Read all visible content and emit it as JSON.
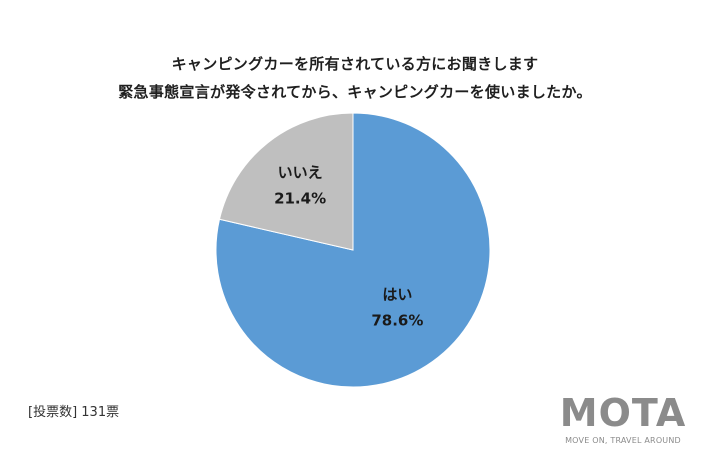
{
  "title_lines": [
    "キャンピングカーを所有されている方にお聞きします",
    "緊急事態宣言が発令されてから、キャンピングカーを使いましたか。"
  ],
  "footnote": "[投票数] 131票",
  "logo": {
    "wordmark": "MOTA",
    "tagline": "MOVE ON, TRAVEL AROUND",
    "color": "#8b8b8b"
  },
  "chart_data": {
    "type": "pie",
    "start_angle_deg": 0,
    "direction": "clockwise",
    "slices": [
      {
        "label": "はい",
        "value": 78.6,
        "display": "78.6%",
        "color": "#5b9bd5"
      },
      {
        "label": "いいえ",
        "value": 21.4,
        "display": "21.4%",
        "color": "#bfbfbf"
      }
    ]
  }
}
